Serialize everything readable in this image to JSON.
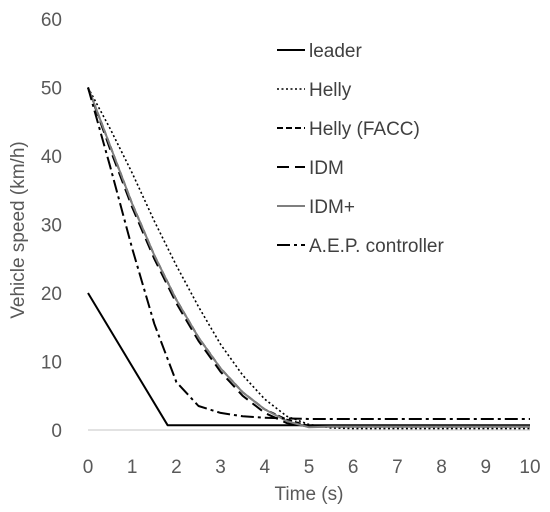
{
  "chart_data": {
    "type": "line",
    "title": "",
    "xlabel": "Time (s)",
    "ylabel": "Vehicle speed (km/h)",
    "xlim": [
      0,
      10
    ],
    "ylim": [
      0,
      60
    ],
    "xticks": [
      0,
      1,
      2,
      3,
      4,
      5,
      6,
      7,
      8,
      9,
      10
    ],
    "yticks": [
      0,
      10,
      20,
      30,
      40,
      50,
      60
    ],
    "grid": false,
    "legend_position": "top-right",
    "series": [
      {
        "name": "leader",
        "style": "solid",
        "color": "#000000",
        "points": [
          [
            0,
            20
          ],
          [
            1.8,
            0.7
          ],
          [
            10,
            0.7
          ]
        ]
      },
      {
        "name": "Helly",
        "style": "dotted",
        "color": "#000000",
        "points": [
          [
            0,
            50
          ],
          [
            0.5,
            44
          ],
          [
            1,
            37.5
          ],
          [
            1.5,
            30.5
          ],
          [
            2,
            24
          ],
          [
            2.5,
            18
          ],
          [
            3,
            12.5
          ],
          [
            3.5,
            8
          ],
          [
            4,
            4.5
          ],
          [
            4.5,
            2
          ],
          [
            5,
            0.8
          ],
          [
            5.5,
            0.3
          ],
          [
            6,
            0.2
          ],
          [
            10,
            0.2
          ]
        ]
      },
      {
        "name": "Helly (FACC)",
        "style": "short-dash",
        "color": "#000000",
        "points": [
          [
            0,
            50
          ],
          [
            0.5,
            41.5
          ],
          [
            1,
            33
          ],
          [
            1.5,
            25.5
          ],
          [
            2,
            19
          ],
          [
            2.5,
            13.5
          ],
          [
            3,
            9
          ],
          [
            3.5,
            5.5
          ],
          [
            4,
            3
          ],
          [
            4.5,
            1.5
          ],
          [
            5,
            0.6
          ],
          [
            5.5,
            0.5
          ],
          [
            10,
            0.5
          ]
        ]
      },
      {
        "name": "IDM",
        "style": "long-dash",
        "color": "#000000",
        "points": [
          [
            0,
            50
          ],
          [
            0.5,
            41
          ],
          [
            1,
            32.5
          ],
          [
            1.5,
            25
          ],
          [
            2,
            18.5
          ],
          [
            2.5,
            13
          ],
          [
            3,
            8.5
          ],
          [
            3.5,
            5
          ],
          [
            4,
            2.5
          ],
          [
            4.5,
            1
          ],
          [
            5,
            0.5
          ],
          [
            10,
            0.5
          ]
        ]
      },
      {
        "name": "IDM+",
        "style": "solid",
        "color": "#7f7f7f",
        "points": [
          [
            0,
            50
          ],
          [
            0.5,
            41.5
          ],
          [
            1,
            33
          ],
          [
            1.5,
            25.5
          ],
          [
            2,
            19
          ],
          [
            2.5,
            13.5
          ],
          [
            3,
            9
          ],
          [
            3.5,
            5.5
          ],
          [
            4,
            3
          ],
          [
            4.5,
            1.3
          ],
          [
            5,
            0.4
          ],
          [
            5.5,
            0.5
          ],
          [
            10,
            0.5
          ]
        ]
      },
      {
        "name": "A.E.P. controller",
        "style": "dash-dot",
        "color": "#000000",
        "points": [
          [
            0,
            50
          ],
          [
            0.5,
            38.5
          ],
          [
            1,
            26.5
          ],
          [
            1.5,
            15.5
          ],
          [
            2,
            7
          ],
          [
            2.5,
            3.5
          ],
          [
            3,
            2.5
          ],
          [
            3.5,
            2
          ],
          [
            4,
            1.8
          ],
          [
            4.5,
            1.7
          ],
          [
            5,
            1.6
          ],
          [
            10,
            1.6
          ]
        ]
      }
    ]
  }
}
